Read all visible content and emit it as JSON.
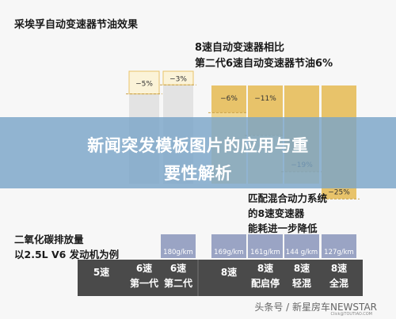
{
  "chart_data": {
    "type": "bar",
    "title": "采埃孚自动变速器节油效果",
    "comparison_title": [
      "8速自动变速器相比",
      "第二代6速自动变速器节油6%"
    ],
    "hybrid_title": [
      "匹配混合动力系统",
      "的8速变速器",
      "能耗进一步降低"
    ],
    "co2_title": [
      "二氧化碳排放量",
      "以2.5L V6 发动机为例"
    ],
    "ylim": [
      -30,
      0
    ],
    "categories": [
      [
        "5速"
      ],
      [
        "6速",
        "第一代"
      ],
      [
        "6速",
        "第二代"
      ],
      [
        "8速"
      ],
      [
        "8速",
        "配启停"
      ],
      [
        "8速",
        "轻混"
      ],
      [
        "8速",
        "全混"
      ]
    ],
    "savings_pct": [
      0,
      -5,
      -3,
      -6,
      -11,
      -19,
      -25
    ],
    "savings_labels": [
      "",
      "−5%",
      "−3%",
      "−6%",
      "−11%",
      "−19%",
      "−25%"
    ],
    "co2_values": [
      "",
      "",
      "180g/km",
      "169g/km",
      "161g/km",
      "144 g/km",
      "127g/km"
    ]
  },
  "overlay": {
    "line1": "新闻突发模板图片的应用与重",
    "line2": "要性解析"
  },
  "watermark": {
    "text": "头条号 / 新星房车NEWSTAR",
    "small": "Click@TOUTIAO.COM"
  },
  "colors": {
    "grey_bar": "#e3e3e3",
    "gold_bar": "#f0d690",
    "gold_saving": "#e8c36a",
    "bottom_band": "#4a4a4a",
    "co2_box": "#9aa4c4"
  }
}
